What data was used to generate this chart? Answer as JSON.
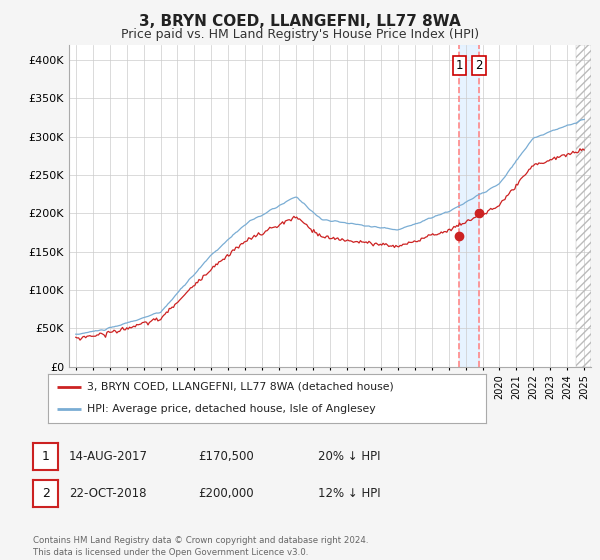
{
  "title": "3, BRYN COED, LLANGEFNI, LL77 8WA",
  "subtitle": "Price paid vs. HM Land Registry's House Price Index (HPI)",
  "title_fontsize": 11,
  "subtitle_fontsize": 9,
  "background_color": "#f5f5f5",
  "plot_bg_color": "#ffffff",
  "grid_color": "#cccccc",
  "hpi_color": "#7aadd4",
  "price_color": "#cc2222",
  "transaction1_year": 2017.625,
  "transaction2_year": 2018.792,
  "transaction1_price": 170500,
  "transaction2_price": 200000,
  "vline_color": "#ff8888",
  "shade_color": "#ddeeff",
  "marker_color": "#cc2222",
  "ylim": [
    0,
    420000
  ],
  "yticks": [
    0,
    50000,
    100000,
    150000,
    200000,
    250000,
    300000,
    350000,
    400000
  ],
  "xlim_left": 1994.6,
  "xlim_right": 2025.4,
  "legend1_label": "3, BRYN COED, LLANGEFNI, LL77 8WA (detached house)",
  "legend2_label": "HPI: Average price, detached house, Isle of Anglesey",
  "footnote": "Contains HM Land Registry data © Crown copyright and database right 2024.\nThis data is licensed under the Open Government Licence v3.0.",
  "table_row1": [
    "1",
    "14-AUG-2017",
    "£170,500",
    "20% ↓ HPI"
  ],
  "table_row2": [
    "2",
    "22-OCT-2018",
    "£200,000",
    "12% ↓ HPI"
  ],
  "hpi_seed": 10,
  "price_seed": 20
}
